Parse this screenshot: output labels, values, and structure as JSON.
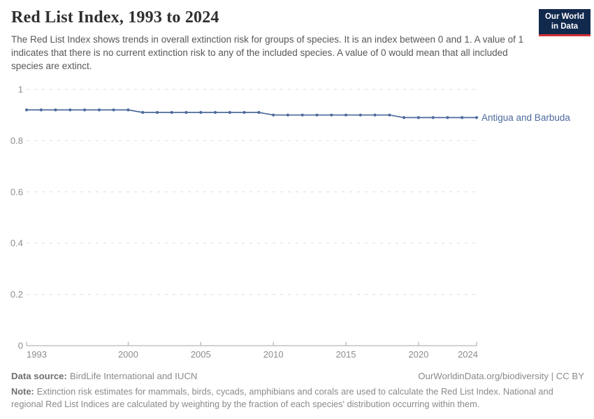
{
  "header": {
    "title": "Red List Index, 1993 to 2024",
    "subtitle": "The Red List Index shows trends in overall extinction risk for groups of species. It is an index between 0 and 1. A value of 1 indicates that there is no current extinction risk to any of the included species. A value of 0 would mean that all included species are extinct.",
    "logo": {
      "line1": "Our World",
      "line2": "in Data",
      "bg_color": "#12294e",
      "accent_color": "#cf3235"
    }
  },
  "chart_data": {
    "type": "line",
    "title": "Red List Index, 1993 to 2024",
    "xlabel": "",
    "ylabel": "",
    "x": [
      1993,
      1994,
      1995,
      1996,
      1997,
      1998,
      1999,
      2000,
      2001,
      2002,
      2003,
      2004,
      2005,
      2006,
      2007,
      2008,
      2009,
      2010,
      2011,
      2012,
      2013,
      2014,
      2015,
      2016,
      2017,
      2018,
      2019,
      2020,
      2021,
      2022,
      2023,
      2024
    ],
    "series": [
      {
        "name": "Antigua and Barbuda",
        "color": "#4C6A9C",
        "values": [
          0.92,
          0.92,
          0.92,
          0.92,
          0.92,
          0.92,
          0.92,
          0.92,
          0.91,
          0.91,
          0.91,
          0.91,
          0.91,
          0.91,
          0.91,
          0.91,
          0.91,
          0.9,
          0.9,
          0.9,
          0.9,
          0.9,
          0.9,
          0.9,
          0.9,
          0.9,
          0.89,
          0.89,
          0.89,
          0.89,
          0.89,
          0.89
        ]
      }
    ],
    "ylim": [
      0,
      1
    ],
    "yticks": [
      0,
      0.2,
      0.4,
      0.6,
      0.8,
      1
    ],
    "ytick_labels": [
      "0",
      "0.2",
      "0.4",
      "0.6",
      "0.8",
      "1"
    ],
    "xticks": [
      1993,
      2000,
      2005,
      2010,
      2015,
      2020,
      2024
    ],
    "grid": "horizontal-dashed",
    "legend": "end-of-line-label",
    "marker": "circle"
  },
  "footer": {
    "datasource_label": "Data source:",
    "datasource_text": "BirdLife International and IUCN",
    "credit": "OurWorldinData.org/biodiversity | CC BY",
    "note_label": "Note:",
    "note_text": "Extinction risk estimates for mammals, birds, cycads, amphibians and corals are used to calculate the Red List Index. National and regional Red List Indices are calculated by weighting by the fraction of each species' distribution occurring within them."
  },
  "colors": {
    "line": "#4C6A9C",
    "gridline": "#dedede",
    "axis": "#a6a6a6",
    "tick_text": "#8c8c8c"
  }
}
